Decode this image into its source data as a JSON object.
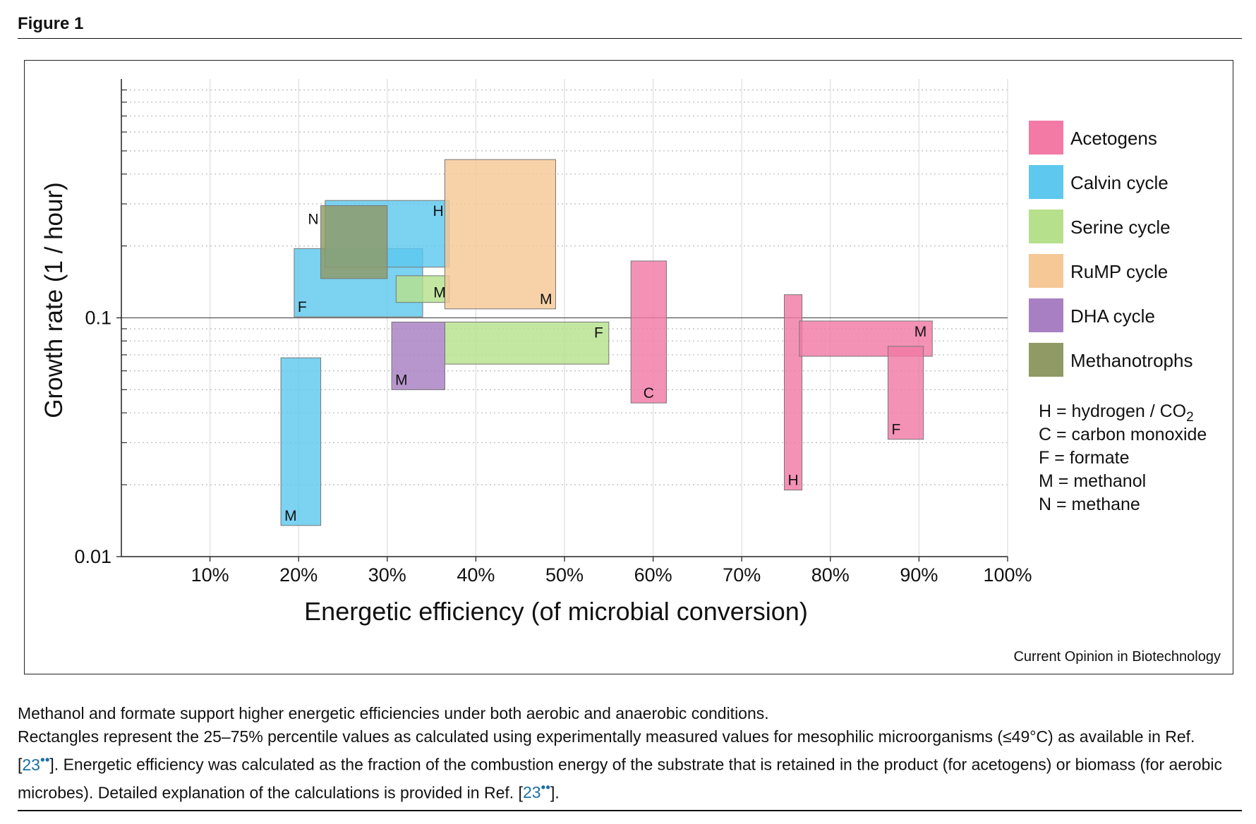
{
  "figure_label": "Figure 1",
  "credit": "Current Opinion in Biotechnology",
  "caption": {
    "line1": "Methanol and formate support higher energetic efficiencies under both aerobic and anaerobic conditions.",
    "line2_part1": "Rectangles represent the 25–75% percentile values as calculated using experimentally measured values for mesophilic microorganisms (≤49°C) as available in Ref. [",
    "ref": "23",
    "ref_marks": "••",
    "line2_part2": "]. Energetic efficiency was calculated as the fraction of the combustion energy of the substrate that is retained in the product (for acetogens) or biomass (for aerobic microbes). Detailed explanation of the calculations is provided in Ref. [",
    "line2_part3": "]."
  },
  "chart_data": {
    "type": "box-rectangles",
    "xlabel": "Energetic efficiency (of microbial conversion)",
    "ylabel": "Growth rate (1 / hour)",
    "x_ticks": [
      "10%",
      "20%",
      "30%",
      "40%",
      "50%",
      "60%",
      "70%",
      "80%",
      "90%",
      "100%"
    ],
    "x_tick_values": [
      10,
      20,
      30,
      40,
      50,
      60,
      70,
      80,
      90,
      100
    ],
    "xlim": [
      0,
      100
    ],
    "y_scale": "log",
    "ylim": [
      0.01,
      1
    ],
    "y_ticks": [
      "0.01",
      "0.1"
    ],
    "y_tick_values": [
      0.01,
      0.1
    ],
    "reference_line_y": 0.1,
    "grid": true,
    "legend_position": "right",
    "colors": {
      "Acetogens": "#f27aa5",
      "Calvin cycle": "#5ec8ee",
      "Serine cycle": "#b6e08c",
      "RuMP cycle": "#f5c896",
      "DHA cycle": "#a77fc2",
      "Methanotrophs": "#8f9a65"
    },
    "legend": [
      {
        "name": "Acetogens",
        "color": "#f27aa5"
      },
      {
        "name": "Calvin cycle",
        "color": "#5ec8ee"
      },
      {
        "name": "Serine cycle",
        "color": "#b6e08c"
      },
      {
        "name": "RuMP cycle",
        "color": "#f5c896"
      },
      {
        "name": "DHA cycle",
        "color": "#a77fc2"
      },
      {
        "name": "Methanotrophs",
        "color": "#8f9a65"
      }
    ],
    "key": [
      {
        "text": "H = hydrogen / CO",
        "sub": "2"
      },
      {
        "text": "C = carbon monoxide",
        "sub": ""
      },
      {
        "text": "F = formate",
        "sub": ""
      },
      {
        "text": "M = methanol",
        "sub": ""
      },
      {
        "text": "N = methane",
        "sub": ""
      }
    ],
    "rectangles": [
      {
        "group": "Calvin cycle",
        "label": "M",
        "label_pos": "bottom-left",
        "x": [
          18,
          22.5
        ],
        "y": [
          0.0135,
          0.068
        ]
      },
      {
        "group": "Calvin cycle",
        "label": "F",
        "label_pos": "bottom-left",
        "x": [
          19.5,
          34
        ],
        "y": [
          0.101,
          0.195
        ]
      },
      {
        "group": "Calvin cycle",
        "label": "H",
        "label_pos": "top-right",
        "x": [
          23,
          37
        ],
        "y": [
          0.163,
          0.31
        ]
      },
      {
        "group": "Methanotrophs",
        "label": "N",
        "label_pos": "top-left-outside",
        "x": [
          22.5,
          30
        ],
        "y": [
          0.146,
          0.295
        ]
      },
      {
        "group": "Serine cycle",
        "label": "M",
        "label_pos": "bottom-right",
        "x": [
          31,
          37
        ],
        "y": [
          0.116,
          0.15
        ]
      },
      {
        "group": "Serine cycle",
        "label": "F",
        "label_pos": "top-right",
        "x": [
          36.5,
          55
        ],
        "y": [
          0.064,
          0.096
        ]
      },
      {
        "group": "DHA cycle",
        "label": "M",
        "label_pos": "bottom-left",
        "x": [
          30.5,
          36.5
        ],
        "y": [
          0.05,
          0.096
        ]
      },
      {
        "group": "RuMP cycle",
        "label": "M",
        "label_pos": "bottom-right",
        "x": [
          36.5,
          49
        ],
        "y": [
          0.109,
          0.46
        ]
      },
      {
        "group": "Acetogens",
        "label": "C",
        "label_pos": "bottom-center",
        "x": [
          57.5,
          61.5
        ],
        "y": [
          0.044,
          0.173
        ]
      },
      {
        "group": "Acetogens",
        "label": "H",
        "label_pos": "bottom-center",
        "x": [
          74.8,
          76.8
        ],
        "y": [
          0.019,
          0.125
        ]
      },
      {
        "group": "Acetogens",
        "label": "M",
        "label_pos": "top-right",
        "x": [
          76.5,
          91.5
        ],
        "y": [
          0.069,
          0.097
        ]
      },
      {
        "group": "Acetogens",
        "label": "F",
        "label_pos": "bottom-left",
        "x": [
          86.5,
          90.5
        ],
        "y": [
          0.031,
          0.076
        ]
      }
    ]
  }
}
